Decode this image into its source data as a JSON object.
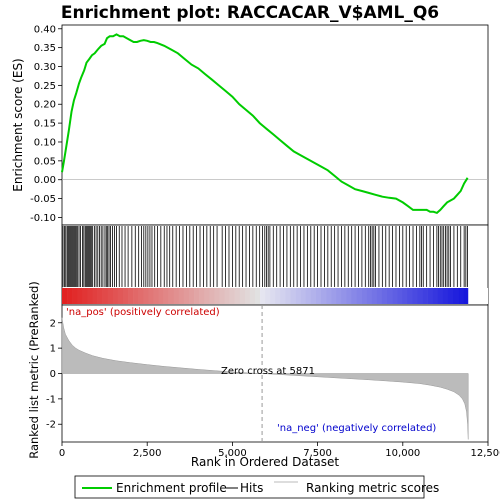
{
  "chart_data": {
    "type": "line",
    "title": "Enrichment plot: RACCACAR_V$AML_Q6",
    "es_panel": {
      "ylabel": "Enrichment score (ES)",
      "ylim": [
        -0.12,
        0.41
      ],
      "yticks": [
        -0.1,
        -0.05,
        0.0,
        0.05,
        0.1,
        0.15,
        0.2,
        0.25,
        0.3,
        0.35,
        0.4
      ],
      "ytick_labels": [
        "-0.10",
        "-0.05",
        "0.00",
        "0.05",
        "0.10",
        "0.15",
        "0.20",
        "0.25",
        "0.30",
        "0.35",
        "0.40"
      ],
      "series": [
        {
          "name": "Enrichment profile",
          "color": "#00cc00",
          "x": [
            0,
            60,
            130,
            200,
            280,
            350,
            420,
            500,
            560,
            650,
            720,
            800,
            880,
            960,
            1050,
            1150,
            1250,
            1320,
            1400,
            1500,
            1600,
            1700,
            1800,
            1900,
            2000,
            2100,
            2200,
            2300,
            2400,
            2500,
            2600,
            2700,
            2800,
            3000,
            3200,
            3400,
            3600,
            3800,
            4000,
            4200,
            4400,
            4600,
            4800,
            5000,
            5200,
            5400,
            5600,
            5800,
            6000,
            6200,
            6400,
            6600,
            6800,
            7000,
            7200,
            7400,
            7600,
            7800,
            8000,
            8200,
            8400,
            8600,
            8800,
            9000,
            9200,
            9400,
            9600,
            9800,
            10000,
            10150,
            10300,
            10450,
            10600,
            10700,
            10800,
            10900,
            11000,
            11100,
            11200,
            11300,
            11400,
            11500,
            11600,
            11700,
            11800,
            11900
          ],
          "y": [
            0.02,
            0.05,
            0.09,
            0.13,
            0.18,
            0.21,
            0.23,
            0.255,
            0.27,
            0.29,
            0.31,
            0.32,
            0.33,
            0.335,
            0.345,
            0.355,
            0.36,
            0.375,
            0.38,
            0.38,
            0.385,
            0.38,
            0.38,
            0.375,
            0.37,
            0.365,
            0.365,
            0.368,
            0.37,
            0.368,
            0.365,
            0.365,
            0.362,
            0.355,
            0.345,
            0.335,
            0.32,
            0.305,
            0.295,
            0.28,
            0.265,
            0.25,
            0.235,
            0.22,
            0.2,
            0.185,
            0.17,
            0.15,
            0.135,
            0.12,
            0.105,
            0.09,
            0.075,
            0.065,
            0.055,
            0.045,
            0.035,
            0.025,
            0.01,
            -0.005,
            -0.015,
            -0.025,
            -0.03,
            -0.035,
            -0.04,
            -0.045,
            -0.048,
            -0.05,
            -0.06,
            -0.07,
            -0.08,
            -0.08,
            -0.08,
            -0.08,
            -0.085,
            -0.085,
            -0.088,
            -0.08,
            -0.07,
            -0.06,
            -0.055,
            -0.05,
            -0.04,
            -0.03,
            -0.01,
            0.005
          ]
        }
      ]
    },
    "hits_panel": {
      "legend_label": "Hits",
      "hit_positions": [
        30,
        70,
        110,
        150,
        180,
        210,
        240,
        270,
        300,
        330,
        360,
        390,
        420,
        460,
        500,
        540,
        600,
        640,
        680,
        710,
        740,
        770,
        800,
        830,
        860,
        900,
        950,
        1000,
        1050,
        1100,
        1150,
        1200,
        1260,
        1300,
        1340,
        1380,
        1420,
        1480,
        1540,
        1600,
        1680,
        1760,
        1850,
        1940,
        2050,
        2150,
        2250,
        2330,
        2400,
        2460,
        2520,
        2580,
        2640,
        2720,
        2800,
        2900,
        3000,
        3080,
        3160,
        3250,
        3350,
        3450,
        3550,
        3650,
        3750,
        3850,
        3950,
        4050,
        4150,
        4250,
        4350,
        4450,
        4550,
        4700,
        4800,
        4900,
        5000,
        5100,
        5200,
        5300,
        5400,
        5500,
        5600,
        5700,
        5800,
        5880,
        5950,
        6000,
        6050,
        6100,
        6200,
        6300,
        6400,
        6500,
        6600,
        6700,
        6800,
        6900,
        7000,
        7100,
        7200,
        7300,
        7400,
        7500,
        7600,
        7700,
        7800,
        7900,
        8000,
        8100,
        8200,
        8300,
        8400,
        8500,
        8600,
        8700,
        8800,
        8900,
        9000,
        9050,
        9100,
        9150,
        9200,
        9300,
        9400,
        9500,
        9600,
        9700,
        9800,
        9900,
        10000,
        10100,
        10200,
        10300,
        10400,
        10500,
        10550,
        10600,
        10700,
        10800,
        10900,
        11000,
        11050,
        11100,
        11150,
        11200,
        11250,
        11300,
        11350,
        11400,
        11500,
        11600,
        11700,
        11800,
        11850,
        11900
      ]
    },
    "rank_panel": {
      "ylabel": "Ranked list metric (PreRanked)",
      "xlabel": "Rank in Ordered Dataset",
      "ylim": [
        -2.7,
        2.7
      ],
      "yticks": [
        -2,
        -1,
        0,
        1,
        2
      ],
      "ytick_labels": [
        "-2",
        "-1",
        "0",
        "1",
        "2"
      ],
      "xlim": [
        0,
        12500
      ],
      "xticks": [
        0,
        2500,
        5000,
        7500,
        10000,
        12500
      ],
      "xtick_labels": [
        "0",
        "2,500",
        "5,000",
        "7,500",
        "10,000",
        "12,500"
      ],
      "metric_x": [
        0,
        50,
        100,
        200,
        300,
        400,
        500,
        700,
        900,
        1200,
        1600,
        2000,
        2500,
        3000,
        3500,
        4000,
        4500,
        5000,
        5500,
        5871,
        6500,
        7000,
        7500,
        8000,
        8500,
        9000,
        9500,
        10000,
        10500,
        10800,
        11100,
        11300,
        11500,
        11650,
        11750,
        11820,
        11870,
        11900,
        11920
      ],
      "metric_y": [
        2.2,
        1.8,
        1.55,
        1.3,
        1.12,
        1.0,
        0.92,
        0.8,
        0.7,
        0.6,
        0.5,
        0.43,
        0.35,
        0.28,
        0.22,
        0.16,
        0.11,
        0.06,
        0.02,
        0.0,
        -0.05,
        -0.09,
        -0.13,
        -0.17,
        -0.21,
        -0.25,
        -0.29,
        -0.34,
        -0.4,
        -0.46,
        -0.54,
        -0.62,
        -0.72,
        -0.85,
        -1.0,
        -1.2,
        -1.5,
        -2.0,
        -2.6
      ],
      "zero_cross_label": "Zero cross at 5871",
      "zero_cross": 5871,
      "pos_label": "'na_pos' (positively correlated)",
      "neg_label": "'na_neg' (negatively correlated)",
      "pos_color": "#cc0000",
      "neg_color": "#0000cc"
    },
    "x_max": 11920,
    "legend": {
      "placement": "bottom",
      "items": [
        {
          "label": "Enrichment profile",
          "color": "#00cc00"
        },
        {
          "label": "Hits",
          "color": "#000000"
        },
        {
          "label": "Ranking metric scores",
          "color": "#bbbbbb"
        }
      ]
    }
  }
}
